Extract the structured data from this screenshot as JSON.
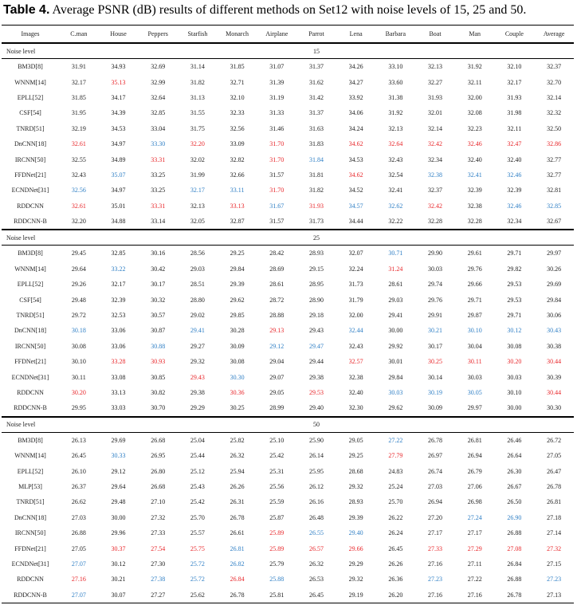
{
  "title": {
    "label": "Table 4.",
    "text": "Average PSNR (dB) results of different methods on Set12 with noise levels of 15, 25 and 50."
  },
  "table": {
    "header": [
      "Images",
      "C.man",
      "House",
      "Peppers",
      "Starfish",
      "Monarch",
      "Airplane",
      "Parrot",
      "Lena",
      "Barbara",
      "Boat",
      "Man",
      "Couple",
      "Average"
    ],
    "sections": [
      {
        "label": "Noise level",
        "level": "15",
        "rows": [
          {
            "method": "BM3D[8]",
            "values": [
              "31.91",
              "34.93",
              "32.69",
              "31.14",
              "31.85",
              "31.07",
              "31.37",
              "34.26",
              "33.10",
              "32.13",
              "31.92",
              "32.10",
              "32.37"
            ]
          },
          {
            "method": "WNNM[14]",
            "values": [
              "32.17",
              "35.13",
              "32.99",
              "31.82",
              "32.71",
              "31.39",
              "31.62",
              "34.27",
              "33.60",
              "32.27",
              "32.11",
              "32.17",
              "32.70"
            ],
            "red": [
              1
            ]
          },
          {
            "method": "EPLL[52]",
            "values": [
              "31.85",
              "34.17",
              "32.64",
              "31.13",
              "32.10",
              "31.19",
              "31.42",
              "33.92",
              "31.38",
              "31.93",
              "32.00",
              "31.93",
              "32.14"
            ]
          },
          {
            "method": "CSF[54]",
            "values": [
              "31.95",
              "34.39",
              "32.85",
              "31.55",
              "32.33",
              "31.33",
              "31.37",
              "34.06",
              "31.92",
              "32.01",
              "32.08",
              "31.98",
              "32.32"
            ]
          },
          {
            "method": "TNRD[51]",
            "values": [
              "32.19",
              "34.53",
              "33.04",
              "31.75",
              "32.56",
              "31.46",
              "31.63",
              "34.24",
              "32.13",
              "32.14",
              "32.23",
              "32.11",
              "32.50"
            ]
          },
          {
            "method": "DnCNN[18]",
            "values": [
              "32.61",
              "34.97",
              "33.30",
              "32.20",
              "33.09",
              "31.70",
              "31.83",
              "34.62",
              "32.64",
              "32.42",
              "32.46",
              "32.47",
              "32.86"
            ],
            "red": [
              0,
              3,
              5,
              7,
              8,
              9,
              10,
              11,
              12
            ],
            "blue": [
              2
            ]
          },
          {
            "method": "IRCNN[50]",
            "values": [
              "32.55",
              "34.89",
              "33.31",
              "32.02",
              "32.82",
              "31.70",
              "31.84",
              "34.53",
              "32.43",
              "32.34",
              "32.40",
              "32.40",
              "32.77"
            ],
            "red": [
              2,
              5
            ],
            "blue": [
              6
            ]
          },
          {
            "method": "FFDNet[21]",
            "values": [
              "32.43",
              "35.07",
              "33.25",
              "31.99",
              "32.66",
              "31.57",
              "31.81",
              "34.62",
              "32.54",
              "32.38",
              "32.41",
              "32.46",
              "32.77"
            ],
            "red": [
              7
            ],
            "blue": [
              1,
              9,
              10,
              11
            ]
          },
          {
            "method": "ECNDNet[31]",
            "values": [
              "32.56",
              "34.97",
              "33.25",
              "32.17",
              "33.11",
              "31.70",
              "31.82",
              "34.52",
              "32.41",
              "32.37",
              "32.39",
              "32.39",
              "32.81"
            ],
            "red": [
              5
            ],
            "blue": [
              0,
              3,
              4
            ]
          },
          {
            "method": "RDDCNN",
            "values": [
              "32.61",
              "35.01",
              "33.31",
              "32.13",
              "33.13",
              "31.67",
              "31.93",
              "34.57",
              "32.62",
              "32.42",
              "32.38",
              "32.46",
              "32.85"
            ],
            "red": [
              0,
              2,
              4,
              6,
              9
            ],
            "blue": [
              5,
              7,
              8,
              11,
              12
            ]
          },
          {
            "method": "RDDCNN-B",
            "values": [
              "32.20",
              "34.88",
              "33.14",
              "32.05",
              "32.87",
              "31.57",
              "31.73",
              "34.44",
              "32.22",
              "32.28",
              "32.28",
              "32.34",
              "32.67"
            ]
          }
        ]
      },
      {
        "label": "Noise level",
        "level": "25",
        "rows": [
          {
            "method": "BM3D[8]",
            "values": [
              "29.45",
              "32.85",
              "30.16",
              "28.56",
              "29.25",
              "28.42",
              "28.93",
              "32.07",
              "30.71",
              "29.90",
              "29.61",
              "29.71",
              "29.97"
            ],
            "blue": [
              8
            ]
          },
          {
            "method": "WNNM[14]",
            "values": [
              "29.64",
              "33.22",
              "30.42",
              "29.03",
              "29.84",
              "28.69",
              "29.15",
              "32.24",
              "31.24",
              "30.03",
              "29.76",
              "29.82",
              "30.26"
            ],
            "red": [
              8
            ],
            "blue": [
              1
            ]
          },
          {
            "method": "EPLL[52]",
            "values": [
              "29.26",
              "32.17",
              "30.17",
              "28.51",
              "29.39",
              "28.61",
              "28.95",
              "31.73",
              "28.61",
              "29.74",
              "29.66",
              "29.53",
              "29.69"
            ]
          },
          {
            "method": "CSF[54]",
            "values": [
              "29.48",
              "32.39",
              "30.32",
              "28.80",
              "29.62",
              "28.72",
              "28.90",
              "31.79",
              "29.03",
              "29.76",
              "29.71",
              "29.53",
              "29.84"
            ]
          },
          {
            "method": "TNRD[51]",
            "values": [
              "29.72",
              "32.53",
              "30.57",
              "29.02",
              "29.85",
              "28.88",
              "29.18",
              "32.00",
              "29.41",
              "29.91",
              "29.87",
              "29.71",
              "30.06"
            ]
          },
          {
            "method": "DnCNN[18]",
            "values": [
              "30.18",
              "33.06",
              "30.87",
              "29.41",
              "30.28",
              "29.13",
              "29.43",
              "32.44",
              "30.00",
              "30.21",
              "30.10",
              "30.12",
              "30.43"
            ],
            "red": [
              5
            ],
            "blue": [
              0,
              3,
              7,
              9,
              10,
              11,
              12
            ]
          },
          {
            "method": "IRCNN[50]",
            "values": [
              "30.08",
              "33.06",
              "30.88",
              "29.27",
              "30.09",
              "29.12",
              "29.47",
              "32.43",
              "29.92",
              "30.17",
              "30.04",
              "30.08",
              "30.38"
            ],
            "blue": [
              2,
              5,
              6
            ]
          },
          {
            "method": "FFDNet[21]",
            "values": [
              "30.10",
              "33.28",
              "30.93",
              "29.32",
              "30.08",
              "29.04",
              "29.44",
              "32.57",
              "30.01",
              "30.25",
              "30.11",
              "30.20",
              "30.44"
            ],
            "red": [
              1,
              2,
              7,
              9,
              10,
              11,
              12
            ]
          },
          {
            "method": "ECNDNet[31]",
            "values": [
              "30.11",
              "33.08",
              "30.85",
              "29.43",
              "30.30",
              "29.07",
              "29.38",
              "32.38",
              "29.84",
              "30.14",
              "30.03",
              "30.03",
              "30.39"
            ],
            "red": [
              3
            ],
            "blue": [
              4
            ]
          },
          {
            "method": "RDDCNN",
            "values": [
              "30.20",
              "33.13",
              "30.82",
              "29.38",
              "30.36",
              "29.05",
              "29.53",
              "32.40",
              "30.03",
              "30.19",
              "30.05",
              "30.10",
              "30.44"
            ],
            "red": [
              0,
              4,
              6,
              12
            ],
            "blue": [
              8,
              9,
              10
            ]
          },
          {
            "method": "RDDCNN-B",
            "values": [
              "29.95",
              "33.03",
              "30.70",
              "29.29",
              "30.25",
              "28.99",
              "29.40",
              "32.30",
              "29.62",
              "30.09",
              "29.97",
              "30.00",
              "30.30"
            ]
          }
        ]
      },
      {
        "label": "Noise level",
        "level": "50",
        "rows": [
          {
            "method": "BM3D[8]",
            "values": [
              "26.13",
              "29.69",
              "26.68",
              "25.04",
              "25.82",
              "25.10",
              "25.90",
              "29.05",
              "27.22",
              "26.78",
              "26.81",
              "26.46",
              "26.72"
            ],
            "blue": [
              8
            ]
          },
          {
            "method": "WNNM[14]",
            "values": [
              "26.45",
              "30.33",
              "26.95",
              "25.44",
              "26.32",
              "25.42",
              "26.14",
              "29.25",
              "27.79",
              "26.97",
              "26.94",
              "26.64",
              "27.05"
            ],
            "red": [
              8
            ],
            "blue": [
              1
            ]
          },
          {
            "method": "EPLL[52]",
            "values": [
              "26.10",
              "29.12",
              "26.80",
              "25.12",
              "25.94",
              "25.31",
              "25.95",
              "28.68",
              "24.83",
              "26.74",
              "26.79",
              "26.30",
              "26.47"
            ]
          },
          {
            "method": "MLP[53]",
            "values": [
              "26.37",
              "29.64",
              "26.68",
              "25.43",
              "26.26",
              "25.56",
              "26.12",
              "29.32",
              "25.24",
              "27.03",
              "27.06",
              "26.67",
              "26.78"
            ]
          },
          {
            "method": "TNRD[51]",
            "values": [
              "26.62",
              "29.48",
              "27.10",
              "25.42",
              "26.31",
              "25.59",
              "26.16",
              "28.93",
              "25.70",
              "26.94",
              "26.98",
              "26.50",
              "26.81"
            ]
          },
          {
            "method": "DnCNN[18]",
            "values": [
              "27.03",
              "30.00",
              "27.32",
              "25.70",
              "26.78",
              "25.87",
              "26.48",
              "29.39",
              "26.22",
              "27.20",
              "27.24",
              "26.90",
              "27.18"
            ],
            "blue": [
              10,
              11
            ]
          },
          {
            "method": "IRCNN[50]",
            "values": [
              "26.88",
              "29.96",
              "27.33",
              "25.57",
              "26.61",
              "25.89",
              "26.55",
              "29.40",
              "26.24",
              "27.17",
              "27.17",
              "26.88",
              "27.14"
            ],
            "red": [
              5
            ],
            "blue": [
              6,
              7
            ]
          },
          {
            "method": "FFDNet[21]",
            "values": [
              "27.05",
              "30.37",
              "27.54",
              "25.75",
              "26.81",
              "25.89",
              "26.57",
              "29.66",
              "26.45",
              "27.33",
              "27.29",
              "27.08",
              "27.32"
            ],
            "red": [
              1,
              2,
              3,
              5,
              6,
              7,
              9,
              10,
              11,
              12
            ],
            "blue": [
              4
            ]
          },
          {
            "method": "ECNDNet[31]",
            "values": [
              "27.07",
              "30.12",
              "27.30",
              "25.72",
              "26.82",
              "25.79",
              "26.32",
              "29.29",
              "26.26",
              "27.16",
              "27.11",
              "26.84",
              "27.15"
            ],
            "blue": [
              0,
              3,
              4
            ]
          },
          {
            "method": "RDDCNN",
            "values": [
              "27.16",
              "30.21",
              "27.38",
              "25.72",
              "26.84",
              "25.88",
              "26.53",
              "29.32",
              "26.36",
              "27.23",
              "27.22",
              "26.88",
              "27.23"
            ],
            "red": [
              0,
              4
            ],
            "blue": [
              2,
              3,
              5,
              9,
              12
            ]
          },
          {
            "method": "RDDCNN-B",
            "values": [
              "27.07",
              "30.07",
              "27.27",
              "25.62",
              "26.78",
              "25.81",
              "26.45",
              "29.19",
              "26.20",
              "27.16",
              "27.16",
              "26.78",
              "27.13"
            ],
            "blue": [
              0
            ]
          }
        ]
      }
    ]
  }
}
